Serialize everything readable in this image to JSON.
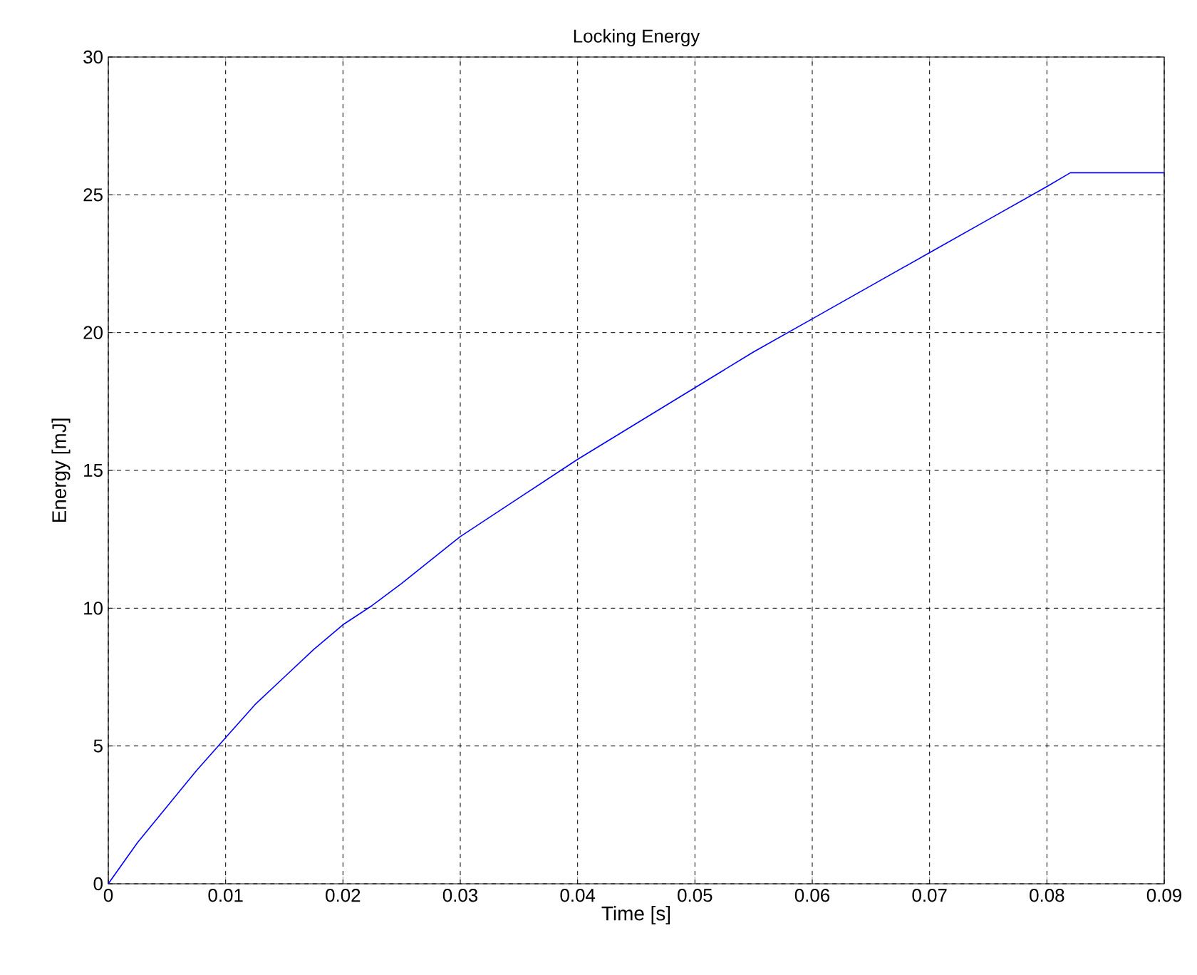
{
  "chart_data": {
    "type": "line",
    "title": "Locking Energy",
    "xlabel": "Time [s]",
    "ylabel": "Energy [mJ]",
    "x": [
      0,
      0.0025,
      0.005,
      0.0075,
      0.01,
      0.0125,
      0.015,
      0.0175,
      0.02,
      0.0225,
      0.025,
      0.03,
      0.035,
      0.04,
      0.045,
      0.05,
      0.055,
      0.06,
      0.065,
      0.07,
      0.075,
      0.08,
      0.082,
      0.09
    ],
    "series": [
      {
        "color": "#0000ff",
        "values": [
          0,
          1.5,
          2.8,
          4.1,
          5.3,
          6.5,
          7.5,
          8.5,
          9.4,
          10.1,
          10.9,
          12.6,
          14.0,
          15.4,
          16.7,
          18.0,
          19.3,
          20.5,
          21.7,
          22.9,
          24.1,
          25.3,
          25.8,
          25.8
        ]
      }
    ],
    "xlim": [
      0,
      0.09
    ],
    "ylim": [
      0,
      30
    ],
    "xticks": [
      0,
      0.01,
      0.02,
      0.03,
      0.04,
      0.05,
      0.06,
      0.07,
      0.08,
      0.09
    ],
    "yticks": [
      0,
      5,
      10,
      15,
      20,
      25,
      30
    ],
    "grid": true,
    "marker": "none",
    "line_style": "solid"
  }
}
